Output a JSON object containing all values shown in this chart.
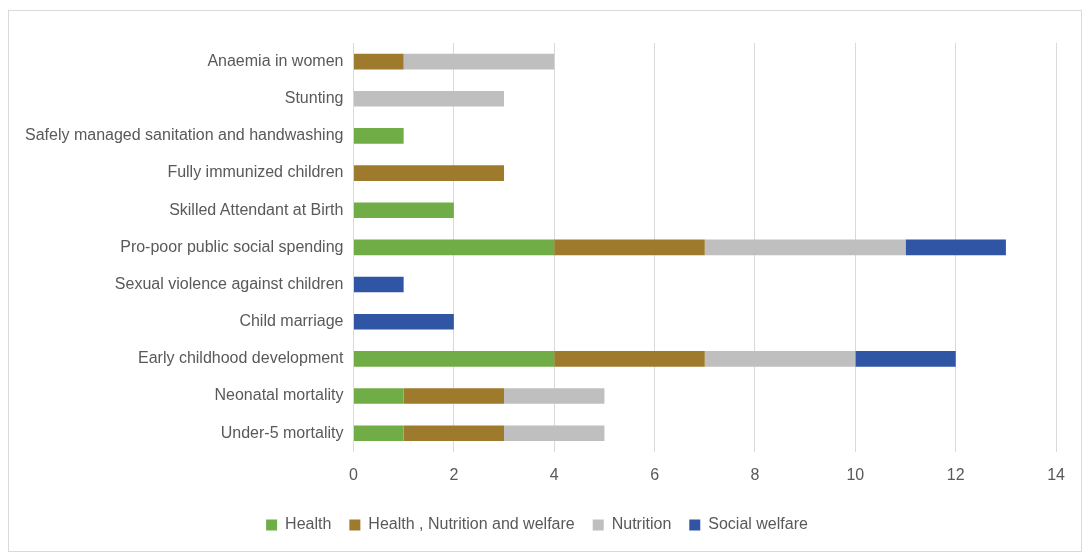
{
  "chart_data": {
    "type": "bar",
    "orientation": "horizontal",
    "stacked": true,
    "categories": [
      "Anaemia in women",
      "Stunting",
      "Safely managed sanitation and handwashing",
      "Fully immunized children",
      "Skilled Attendant at Birth",
      "Pro-poor public social spending",
      "Sexual violence against children",
      "Child marriage",
      "Early childhood development",
      "Neonatal mortality",
      "Under-5 mortality"
    ],
    "series": [
      {
        "name": "Health",
        "color": "#70ad47",
        "values": [
          0,
          0,
          1,
          0,
          2,
          4,
          0,
          0,
          4,
          1,
          1
        ]
      },
      {
        "name": "Health , Nutrition and welfare",
        "color": "#9e7a2c",
        "values": [
          1,
          0,
          0,
          3,
          0,
          3,
          0,
          0,
          3,
          2,
          2
        ]
      },
      {
        "name": "Nutrition",
        "color": "#bfbfbf",
        "values": [
          3,
          3,
          0,
          0,
          0,
          4,
          0,
          0,
          3,
          2,
          2
        ]
      },
      {
        "name": "Social welfare",
        "color": "#2f55a4",
        "values": [
          0,
          0,
          0,
          0,
          0,
          2,
          1,
          2,
          2,
          0,
          0
        ]
      }
    ],
    "xlim": [
      0,
      14
    ],
    "xticks": [
      0,
      2,
      4,
      6,
      8,
      10,
      12,
      14
    ],
    "grid": "x",
    "legend": "bottom"
  }
}
